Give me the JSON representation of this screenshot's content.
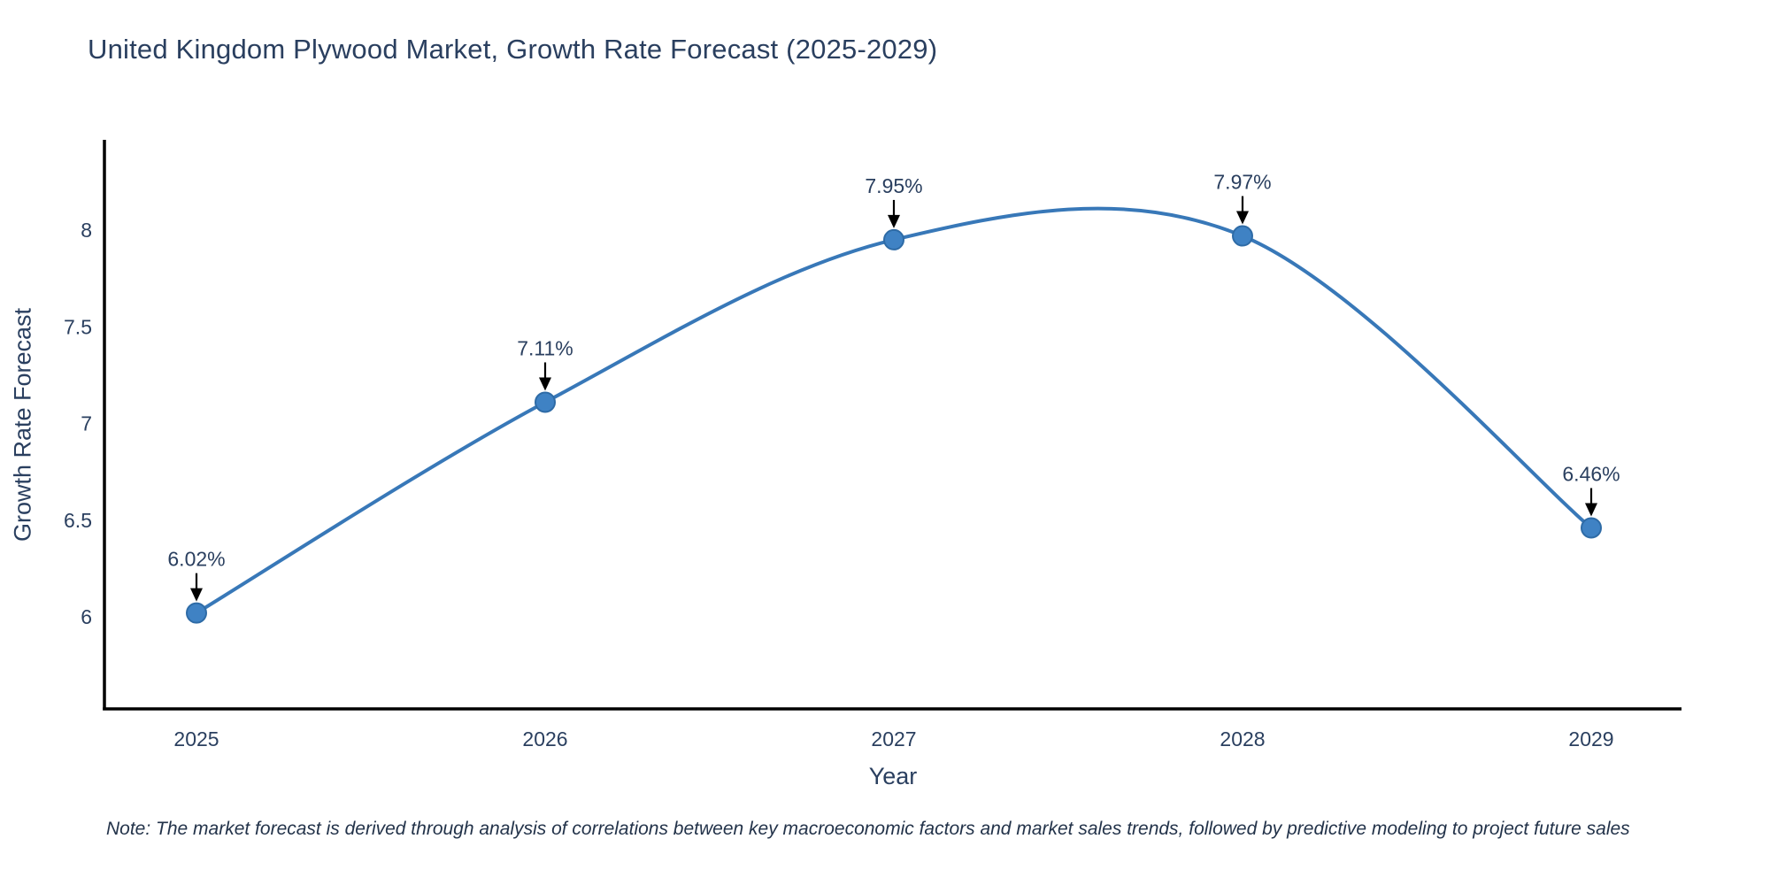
{
  "footnote": "Note: The market forecast is derived through analysis of correlations between key macroeconomic factors and market sales trends, followed by predictive modeling to project future sales",
  "chart_data": {
    "type": "line",
    "title": "United Kingdom Plywood Market, Growth Rate Forecast (2025-2029)",
    "xlabel": "Year",
    "ylabel": "Growth Rate Forecast",
    "x": [
      2025,
      2026,
      2027,
      2028,
      2029
    ],
    "y": [
      6.02,
      7.11,
      7.95,
      7.97,
      6.46
    ],
    "point_labels": [
      "6.02%",
      "7.11%",
      "7.95%",
      "7.97%",
      "6.46%"
    ],
    "x_ticks": [
      "2025",
      "2026",
      "2027",
      "2028",
      "2029"
    ],
    "y_ticks": [
      6,
      6.5,
      7,
      7.5,
      8
    ],
    "ylim": [
      5.52,
      8.46
    ],
    "line_shape": "spline",
    "grid": false,
    "legend": "none",
    "annotation_style": "down-arrow",
    "colors": {
      "line": "#3878b8",
      "marker_fill": "#3f82c4",
      "marker_edge": "#2e6ba6",
      "axis_line": "#000000",
      "tick_text": "#2a3f5f",
      "annotation_text": "#2a3f5f",
      "arrow": "#000000",
      "title_text": "#2a3f5f"
    }
  }
}
